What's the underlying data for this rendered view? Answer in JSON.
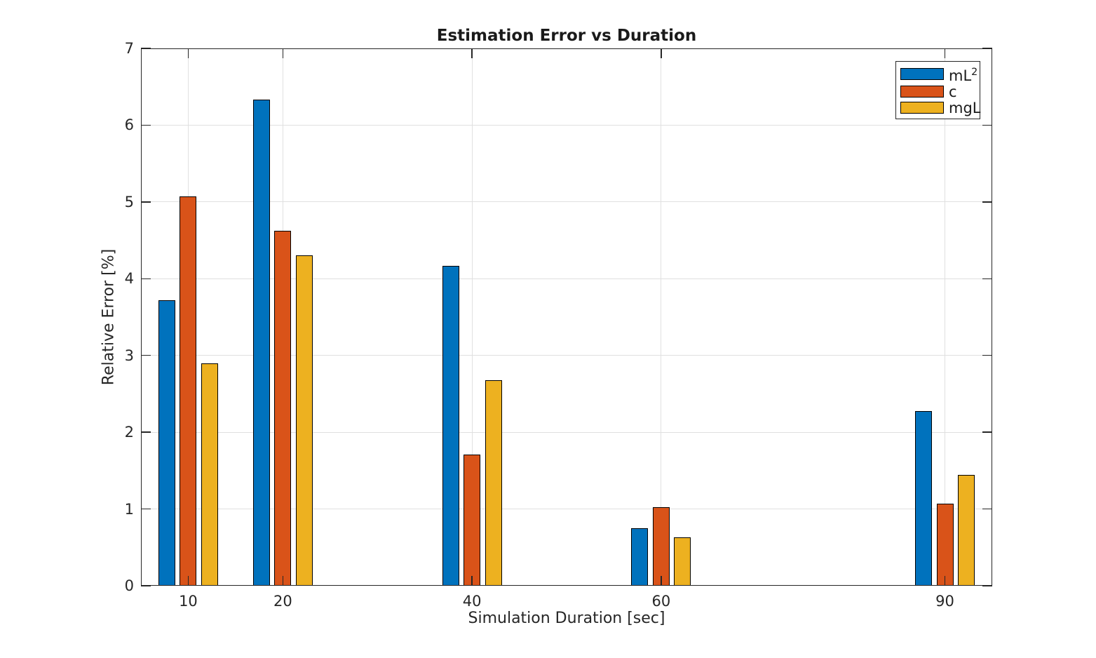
{
  "chart_data": {
    "type": "bar",
    "title": "Estimation Error vs Duration",
    "xlabel": "Simulation Duration [sec]",
    "ylabel": "Relative Error [%]",
    "categories": [
      10,
      20,
      40,
      60,
      90
    ],
    "series": [
      {
        "name": "mL",
        "name_sup": "2",
        "color": "#0072BD",
        "values": [
          3.72,
          6.33,
          4.17,
          0.75,
          2.28
        ]
      },
      {
        "name": "c",
        "name_sup": "",
        "color": "#D95319",
        "values": [
          5.07,
          4.62,
          1.71,
          1.02,
          1.07
        ]
      },
      {
        "name": "mgL",
        "name_sup": "",
        "color": "#EDB120",
        "values": [
          2.9,
          4.3,
          2.68,
          0.63,
          1.44
        ]
      }
    ],
    "xlim": [
      5,
      95
    ],
    "ylim": [
      0,
      7
    ],
    "xticks": [
      10,
      20,
      40,
      60,
      90
    ],
    "yticks": [
      0,
      1,
      2,
      3,
      4,
      5,
      6,
      7
    ],
    "grid": true,
    "legend_position": "northeast",
    "bar_edge_color": "#000000"
  },
  "colors": {
    "axis": "#262626",
    "grid": "#e0e0e0",
    "background": "#ffffff",
    "title_text": "#1a1a1a"
  }
}
